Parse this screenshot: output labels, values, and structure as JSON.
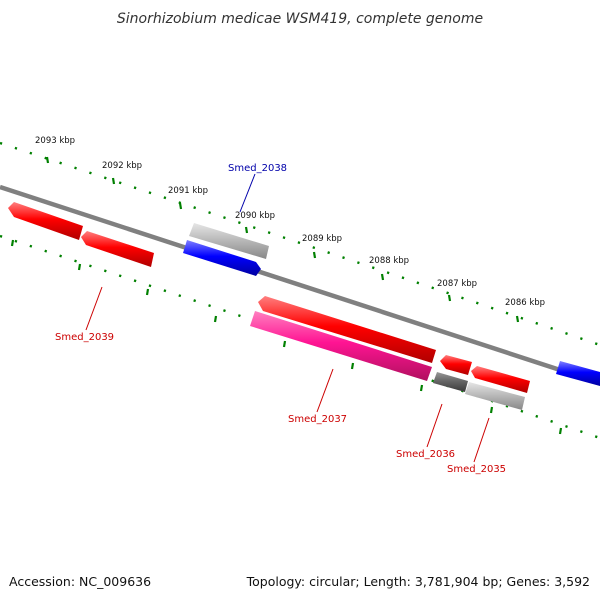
{
  "title": "Sinorhizobium medicae WSM419, complete genome",
  "footer": {
    "accession": "Accession: NC_009636",
    "topology": "Topology: circular; Length: 3,781,904 bp; Genes: 3,592"
  },
  "tick_labels": [
    "2093 kbp",
    "2092 kbp",
    "2091 kbp",
    "2090 kbp",
    "2089 kbp",
    "2088 kbp",
    "2087 kbp",
    "2086 kbp"
  ],
  "colors": {
    "red": "#ff0000",
    "magenta": "#ff1493",
    "blue": "#0000ff",
    "light_gray": "#bbbbbb",
    "dark_gray": "#666666",
    "backbone": "#808080",
    "tick_green": "#008000",
    "label_red": "#cc0000",
    "label_blue": "#0000aa"
  },
  "gene_labels": [
    {
      "name": "Smed_2038",
      "color": "label_blue"
    },
    {
      "name": "Smed_2039",
      "color": "label_red"
    },
    {
      "name": "Smed_2037",
      "color": "label_red"
    },
    {
      "name": "Smed_2036",
      "color": "label_red"
    },
    {
      "name": "Smed_2035",
      "color": "label_red"
    }
  ]
}
